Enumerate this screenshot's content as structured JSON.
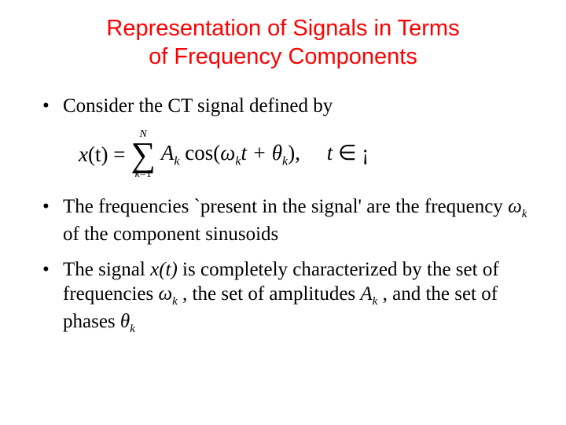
{
  "title_line1": "Representation of Signals in Terms",
  "title_line2": "of Frequency Components",
  "bullet1": "Consider the CT signal defined by",
  "formula": {
    "lhs_x": "x",
    "lhs_arg": "(t)",
    "eq": " = ",
    "sum_top": "N",
    "sum_bot_lhs": "k",
    "sum_bot_eq": "=1",
    "A": "A",
    "A_sub": "k",
    "cos": " cos(",
    "omega": "ω",
    "omega_sub": "k",
    "t_plus": "t + ",
    "theta": "θ",
    "theta_sub": "k",
    "close": "),",
    "tail_t": "t",
    "tail_in": " ∈ ¡"
  },
  "bullet2_a": "The  frequencies `present in the signal' are  the frequency ",
  "bullet2_sym": "ω",
  "bullet2_sym_sub": "k",
  "bullet2_b": " of the component sinusoids",
  "bullet3_a": "The signal ",
  "bullet3_xoft": "x(t)",
  "bullet3_b": " is completely characterized by the set of frequencies ",
  "bullet3_omega": "ω",
  "bullet3_omega_sub": "k",
  "bullet3_c": " , the set of amplitudes ",
  "bullet3_A": "A",
  "bullet3_A_sub": "k",
  "bullet3_d": " , and the set of phases ",
  "bullet3_theta": "θ",
  "bullet3_theta_sub": "k",
  "colors": {
    "title": "#ff0000",
    "body": "#000000",
    "background": "#ffffff"
  },
  "fonts": {
    "title_family": "Verdana",
    "title_size_pt": 22,
    "body_family": "Times New Roman",
    "body_size_pt": 19
  }
}
